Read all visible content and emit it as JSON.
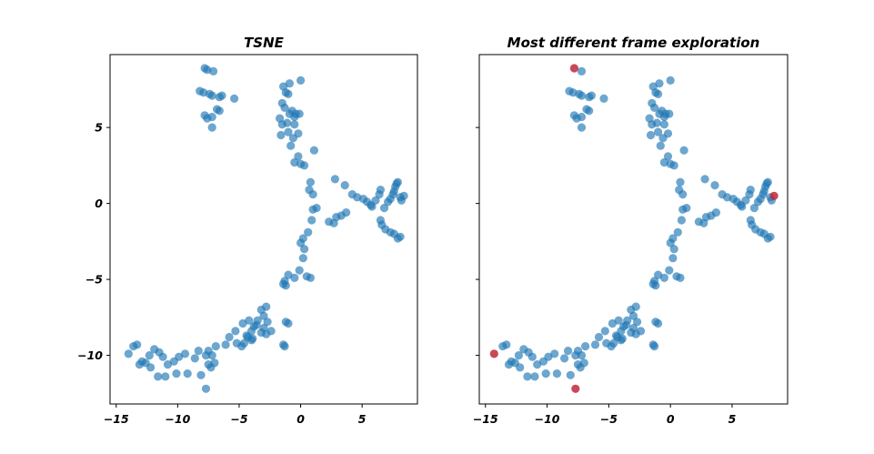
{
  "chart_data": [
    {
      "type": "scatter",
      "title": "TSNE",
      "xlabel": "",
      "ylabel": "",
      "xlim": [
        -15.5,
        9.5
      ],
      "ylim": [
        -13.2,
        9.8
      ],
      "xticks": [
        -15,
        -10,
        -5,
        0,
        5
      ],
      "yticks": [
        5,
        0,
        -5,
        -10
      ],
      "xtick_labels": [
        "−15",
        "−10",
        "−5",
        "0",
        "5"
      ],
      "ytick_labels": [
        "5",
        "0",
        "−5",
        "−10"
      ],
      "show_yticklabels": true,
      "grid": false,
      "series": [
        {
          "color": "#1f77b4",
          "x": [
            -7.8,
            -7.6,
            -7.1,
            -8.2,
            -7.9,
            -7.4,
            -7.2,
            -6.6,
            -6.4,
            -5.4,
            -7.8,
            -7.6,
            -7.2,
            -6.8,
            -6.6,
            -7.2,
            -1.4,
            -0.9,
            -1.2,
            -1.0,
            0.0,
            -1.5,
            -1.3,
            -0.7,
            -0.4,
            -0.9,
            -0.5,
            -1.7,
            -1.5,
            -1.1,
            -0.5,
            -0.1,
            -0.2,
            -1.6,
            -1.0,
            -0.6,
            -0.8,
            -0.2,
            1.1,
            -0.5,
            0.0,
            0.3,
            0.8,
            0.7,
            1.0,
            2.8,
            3.6,
            4.2,
            4.6,
            5.1,
            5.4,
            5.7,
            5.8,
            6.1,
            6.4,
            6.5,
            7.1,
            7.3,
            7.5,
            7.6,
            7.7,
            7.8,
            7.9,
            8.1,
            8.2,
            8.4,
            8.1,
            7.9,
            7.6,
            7.3,
            6.9,
            6.6,
            6.5,
            6.8,
            1.0,
            1.3,
            0.9,
            0.6,
            0.2,
            0.0,
            2.3,
            2.7,
            2.9,
            3.3,
            3.7,
            0.3,
            0.2,
            -0.1,
            -0.5,
            -1.3,
            -1.4,
            -1.2,
            -1.0,
            0.5,
            0.8,
            -1.2,
            -1.0,
            -1.4,
            -1.3,
            -2.8,
            -3.2,
            -3.0,
            -2.7,
            -2.4,
            -3.5,
            -3.0,
            -2.8,
            -3.6,
            -4.0,
            -4.3,
            -4.0,
            -4.6,
            -4.8,
            -5.2,
            -4.4,
            -3.9,
            -3.2,
            -3.8,
            -4.2,
            -4.7,
            -5.3,
            -5.8,
            -6.1,
            -6.9,
            -7.5,
            -7.2,
            -7.0,
            -7.3,
            -7.7,
            -8.3,
            -8.6,
            -9.4,
            -9.9,
            -10.3,
            -10.8,
            -11.2,
            -11.5,
            -11.9,
            -12.3,
            -12.6,
            -12.9,
            -13.3,
            -13.6,
            -14.0,
            -13.1,
            -12.2,
            -11.6,
            -11.0,
            -10.1,
            -9.2,
            -8.1,
            -7.7,
            -7.5
          ],
          "y": [
            8.9,
            8.8,
            8.7,
            7.4,
            7.3,
            7.2,
            7.1,
            7.0,
            7.1,
            6.9,
            5.8,
            5.6,
            5.7,
            6.2,
            6.1,
            5.0,
            7.7,
            7.9,
            7.3,
            7.2,
            8.1,
            6.6,
            6.3,
            6.1,
            5.9,
            5.9,
            5.7,
            5.6,
            5.2,
            5.3,
            5.2,
            5.9,
            4.6,
            4.5,
            4.7,
            4.3,
            3.8,
            3.1,
            3.5,
            2.7,
            2.6,
            2.5,
            1.4,
            0.9,
            0.6,
            1.6,
            1.2,
            0.6,
            0.4,
            0.3,
            0.1,
            -0.1,
            -0.2,
            0.2,
            0.6,
            0.9,
            0.1,
            0.3,
            0.6,
            0.8,
            1.1,
            1.3,
            1.4,
            0.4,
            0.2,
            0.5,
            -2.2,
            -2.3,
            -2.0,
            -1.9,
            -1.7,
            -1.4,
            -1.1,
            -0.3,
            -0.4,
            -0.3,
            -1.1,
            -1.9,
            -2.3,
            -2.6,
            -1.2,
            -1.3,
            -0.9,
            -0.8,
            -0.6,
            -3.0,
            -3.6,
            -4.4,
            -4.9,
            -5.1,
            -5.3,
            -5.4,
            -4.7,
            -4.8,
            -4.9,
            -7.8,
            -7.9,
            -9.3,
            -9.4,
            -6.8,
            -7.0,
            -7.4,
            -7.8,
            -8.4,
            -7.7,
            -8.2,
            -8.6,
            -8.0,
            -8.4,
            -8.8,
            -9.0,
            -9.2,
            -9.4,
            -9.2,
            -8.7,
            -8.9,
            -8.5,
            -8.1,
            -7.7,
            -7.9,
            -8.4,
            -8.8,
            -9.3,
            -9.4,
            -9.7,
            -10.0,
            -10.5,
            -10.8,
            -10.0,
            -9.7,
            -10.2,
            -9.9,
            -10.1,
            -10.4,
            -10.6,
            -10.1,
            -9.8,
            -9.6,
            -10.0,
            -10.5,
            -10.4,
            -9.3,
            -9.4,
            -9.9,
            -10.6,
            -10.8,
            -11.4,
            -11.4,
            -11.2,
            -11.2,
            -11.3,
            -12.2,
            -10.6
          ]
        }
      ]
    },
    {
      "type": "scatter",
      "title": "Most different frame exploration",
      "xlabel": "",
      "ylabel": "",
      "xlim": [
        -15.5,
        9.5
      ],
      "ylim": [
        -13.2,
        9.8
      ],
      "xticks": [
        -15,
        -10,
        -5,
        0,
        5
      ],
      "yticks": [
        5,
        0,
        -5,
        -10
      ],
      "xtick_labels": [
        "−15",
        "−10",
        "−5",
        "0",
        "5"
      ],
      "ytick_labels": [
        "",
        "",
        "",
        ""
      ],
      "show_yticklabels": false,
      "grid": false,
      "series": [
        {
          "color": "#1f77b4",
          "x": [
            -7.2,
            -8.2,
            -7.9,
            -7.4,
            -7.2,
            -6.6,
            -6.4,
            -5.4,
            -7.8,
            -7.6,
            -7.2,
            -6.8,
            -6.6,
            -7.2,
            -1.4,
            -0.9,
            -1.2,
            -1.0,
            0.0,
            -1.5,
            -1.3,
            -0.7,
            -0.4,
            -0.9,
            -0.5,
            -1.7,
            -1.5,
            -1.1,
            -0.5,
            -0.1,
            -0.2,
            -1.6,
            -1.0,
            -0.6,
            -0.8,
            -0.2,
            1.1,
            -0.5,
            0.0,
            0.3,
            0.8,
            0.7,
            1.0,
            2.8,
            3.6,
            4.2,
            4.6,
            5.1,
            5.4,
            5.7,
            5.8,
            6.1,
            6.4,
            6.5,
            7.1,
            7.3,
            7.5,
            7.6,
            7.7,
            7.8,
            7.9,
            8.1,
            8.2,
            8.1,
            7.9,
            7.6,
            7.3,
            6.9,
            6.6,
            6.5,
            6.8,
            1.0,
            1.3,
            0.9,
            0.6,
            0.2,
            0.0,
            2.3,
            2.7,
            2.9,
            3.3,
            3.7,
            0.3,
            0.2,
            -0.1,
            -0.5,
            -1.3,
            -1.4,
            -1.2,
            -1.0,
            0.5,
            0.8,
            -1.2,
            -1.0,
            -1.4,
            -1.3,
            -2.8,
            -3.2,
            -3.0,
            -2.7,
            -2.4,
            -3.5,
            -3.0,
            -2.8,
            -3.6,
            -4.0,
            -4.3,
            -4.0,
            -4.6,
            -4.8,
            -5.2,
            -4.4,
            -3.9,
            -3.2,
            -3.8,
            -4.2,
            -4.7,
            -5.3,
            -5.8,
            -6.1,
            -6.9,
            -7.5,
            -7.2,
            -7.0,
            -7.3,
            -7.7,
            -8.3,
            -8.6,
            -9.4,
            -9.9,
            -10.3,
            -10.8,
            -11.2,
            -11.5,
            -11.9,
            -12.3,
            -12.6,
            -12.9,
            -13.3,
            -13.6,
            -13.1,
            -12.2,
            -11.6,
            -11.0,
            -10.1,
            -9.2,
            -8.1,
            -7.5
          ],
          "y": [
            8.7,
            7.4,
            7.3,
            7.2,
            7.1,
            7.0,
            7.1,
            6.9,
            5.8,
            5.6,
            5.7,
            6.2,
            6.1,
            5.0,
            7.7,
            7.9,
            7.3,
            7.2,
            8.1,
            6.6,
            6.3,
            6.1,
            5.9,
            5.9,
            5.7,
            5.6,
            5.2,
            5.3,
            5.2,
            5.9,
            4.6,
            4.5,
            4.7,
            4.3,
            3.8,
            3.1,
            3.5,
            2.7,
            2.6,
            2.5,
            1.4,
            0.9,
            0.6,
            1.6,
            1.2,
            0.6,
            0.4,
            0.3,
            0.1,
            -0.1,
            -0.2,
            0.2,
            0.6,
            0.9,
            0.1,
            0.3,
            0.6,
            0.8,
            1.1,
            1.3,
            1.4,
            0.4,
            0.2,
            -2.2,
            -2.3,
            -2.0,
            -1.9,
            -1.7,
            -1.4,
            -1.1,
            -0.3,
            -0.4,
            -0.3,
            -1.1,
            -1.9,
            -2.3,
            -2.6,
            -1.2,
            -1.3,
            -0.9,
            -0.8,
            -0.6,
            -3.0,
            -3.6,
            -4.4,
            -4.9,
            -5.1,
            -5.3,
            -5.4,
            -4.7,
            -4.8,
            -4.9,
            -7.8,
            -7.9,
            -9.3,
            -9.4,
            -6.8,
            -7.0,
            -7.4,
            -7.8,
            -8.4,
            -7.7,
            -8.2,
            -8.6,
            -8.0,
            -8.4,
            -8.8,
            -9.0,
            -9.2,
            -9.4,
            -9.2,
            -8.7,
            -8.9,
            -8.5,
            -8.1,
            -7.7,
            -7.9,
            -8.4,
            -8.8,
            -9.3,
            -9.4,
            -9.7,
            -10.0,
            -10.5,
            -10.8,
            -10.0,
            -9.7,
            -10.2,
            -9.9,
            -10.1,
            -10.4,
            -10.6,
            -10.1,
            -9.8,
            -9.6,
            -10.0,
            -10.5,
            -10.4,
            -9.3,
            -9.4,
            -10.6,
            -10.8,
            -11.4,
            -11.4,
            -11.2,
            -11.2,
            -11.3,
            -10.6
          ]
        },
        {
          "color": "#c0283c",
          "x": [
            -7.8,
            8.4,
            -14.3,
            -7.7
          ],
          "y": [
            8.9,
            0.5,
            -9.9,
            -12.2
          ]
        }
      ]
    }
  ]
}
